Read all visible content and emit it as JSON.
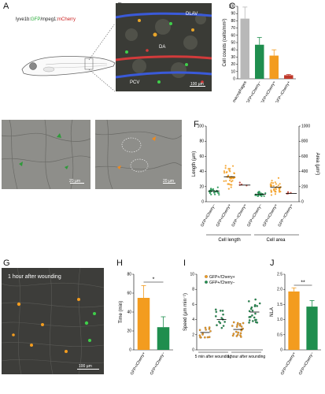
{
  "panels": {
    "A": {
      "letter": "A",
      "construct_parts": [
        {
          "t": "lyve1b",
          "c": "#222222"
        },
        {
          "t": ":",
          "c": "#222222"
        },
        {
          "t": "GFP",
          "c": "#22aa33"
        },
        {
          "t": "/mpeg1:",
          "c": "#222222"
        },
        {
          "t": "mCherry",
          "c": "#cc2222"
        }
      ]
    },
    "B": {
      "letter": "B",
      "labels": {
        "dlav": "DLAV",
        "da": "DA",
        "pcv": "PCV"
      },
      "scale": "100 µm"
    },
    "C": {
      "letter": "C"
    },
    "D": {
      "letter": "D",
      "scale": "20 µm"
    },
    "E": {
      "letter": "E",
      "scale": "20 µm"
    },
    "F": {
      "letter": "F",
      "group_labels": {
        "length": "Cell length",
        "area": "Cell area"
      }
    },
    "G": {
      "letter": "G",
      "overlay": "1 hour after wounding",
      "scale": "100 µm"
    },
    "H": {
      "letter": "H",
      "sig": "*"
    },
    "I": {
      "letter": "I",
      "legend": [
        {
          "label": "GFP+/Cherry+",
          "color": "#f39c1f"
        },
        {
          "label": "GFP+/Cherry−",
          "color": "#1f8e4e"
        }
      ]
    },
    "J": {
      "letter": "J",
      "sig": "**"
    }
  },
  "colors": {
    "gray": "#b8b8b8",
    "green": "#1f8e4e",
    "orange": "#f39c1f",
    "red": "#c0392b",
    "dark": "#555555"
  },
  "chart_data": [
    {
      "id": "C",
      "type": "bar",
      "ylabel": "Cell counts (cells/mm²)",
      "ylim": [
        0,
        100
      ],
      "yticks": [
        "0",
        "10",
        "20",
        "30",
        "40",
        "50",
        "60",
        "70",
        "80",
        "90",
        "100"
      ],
      "categories": [
        "Total macrophages",
        "GFP+/Cherry−",
        "GFP+/Cherry+",
        "GFP−/Cherry+"
      ],
      "values": [
        83,
        47,
        32,
        5
      ],
      "errors": [
        16,
        10,
        8,
        1
      ],
      "colors": [
        "#b8b8b8",
        "#1f8e4e",
        "#f39c1f",
        "#c0392b"
      ]
    },
    {
      "id": "F",
      "type": "scatter",
      "ylabel_left": "Length (µm)",
      "ylabel_right": "Area (µm²)",
      "ylim_left": [
        0,
        100
      ],
      "ylim_right": [
        0,
        1000
      ],
      "yticks_left": [
        "0",
        "20",
        "40",
        "60",
        "80",
        "100"
      ],
      "yticks_right": [
        "0",
        "200",
        "400",
        "600",
        "800",
        "1000"
      ],
      "categories": [
        "GFP+/Cherry−",
        "GFP+/Cherry+",
        "GFP−/Cherry+",
        "GFP+/Cherry−",
        "GFP+/Cherry+",
        "GFP−/Cherry+"
      ],
      "means_left_units": [
        14,
        33,
        22,
        10,
        19,
        11
      ],
      "colors": [
        "#1f8e4e",
        "#f39c1f",
        "#c0392b",
        "#1f8e4e",
        "#f39c1f",
        "#c0392b"
      ]
    },
    {
      "id": "H",
      "type": "bar",
      "ylabel": "Time (min)",
      "ylim": [
        0,
        80
      ],
      "yticks": [
        "0",
        "20",
        "40",
        "60",
        "80"
      ],
      "categories": [
        "GFP+/Cherry+",
        "GFP+/Cherry−"
      ],
      "values": [
        55,
        24
      ],
      "errors": [
        13,
        11
      ],
      "colors": [
        "#f39c1f",
        "#1f8e4e"
      ]
    },
    {
      "id": "I",
      "type": "scatter",
      "ylabel": "Speed (µm min⁻¹)",
      "ylim": [
        0,
        10
      ],
      "yticks": [
        "0",
        "2",
        "4",
        "6",
        "8",
        "10"
      ],
      "categories": [
        "GFP+/Cherry+",
        "GFP+/Cherry−",
        "GFP+/Cherry+",
        "GFP+/Cherry−"
      ],
      "means": [
        2.3,
        4.0,
        2.7,
        5.0
      ],
      "colors": [
        "#f39c1f",
        "#1f8e4e",
        "#f39c1f",
        "#1f8e4e"
      ],
      "group_labels": [
        "5 min after wounding",
        "1 hour after wounding"
      ]
    },
    {
      "id": "J",
      "type": "bar",
      "ylabel": "NLA",
      "ylim": [
        0,
        2.5
      ],
      "yticks": [
        "0",
        "0.5",
        "1.0",
        "1.5",
        "2.0",
        "2.5"
      ],
      "categories": [
        "GFP+/Cherry+",
        "GFP+/Cherry−"
      ],
      "values": [
        1.93,
        1.43
      ],
      "errors": [
        0.12,
        0.2
      ],
      "colors": [
        "#f39c1f",
        "#1f8e4e"
      ]
    }
  ]
}
